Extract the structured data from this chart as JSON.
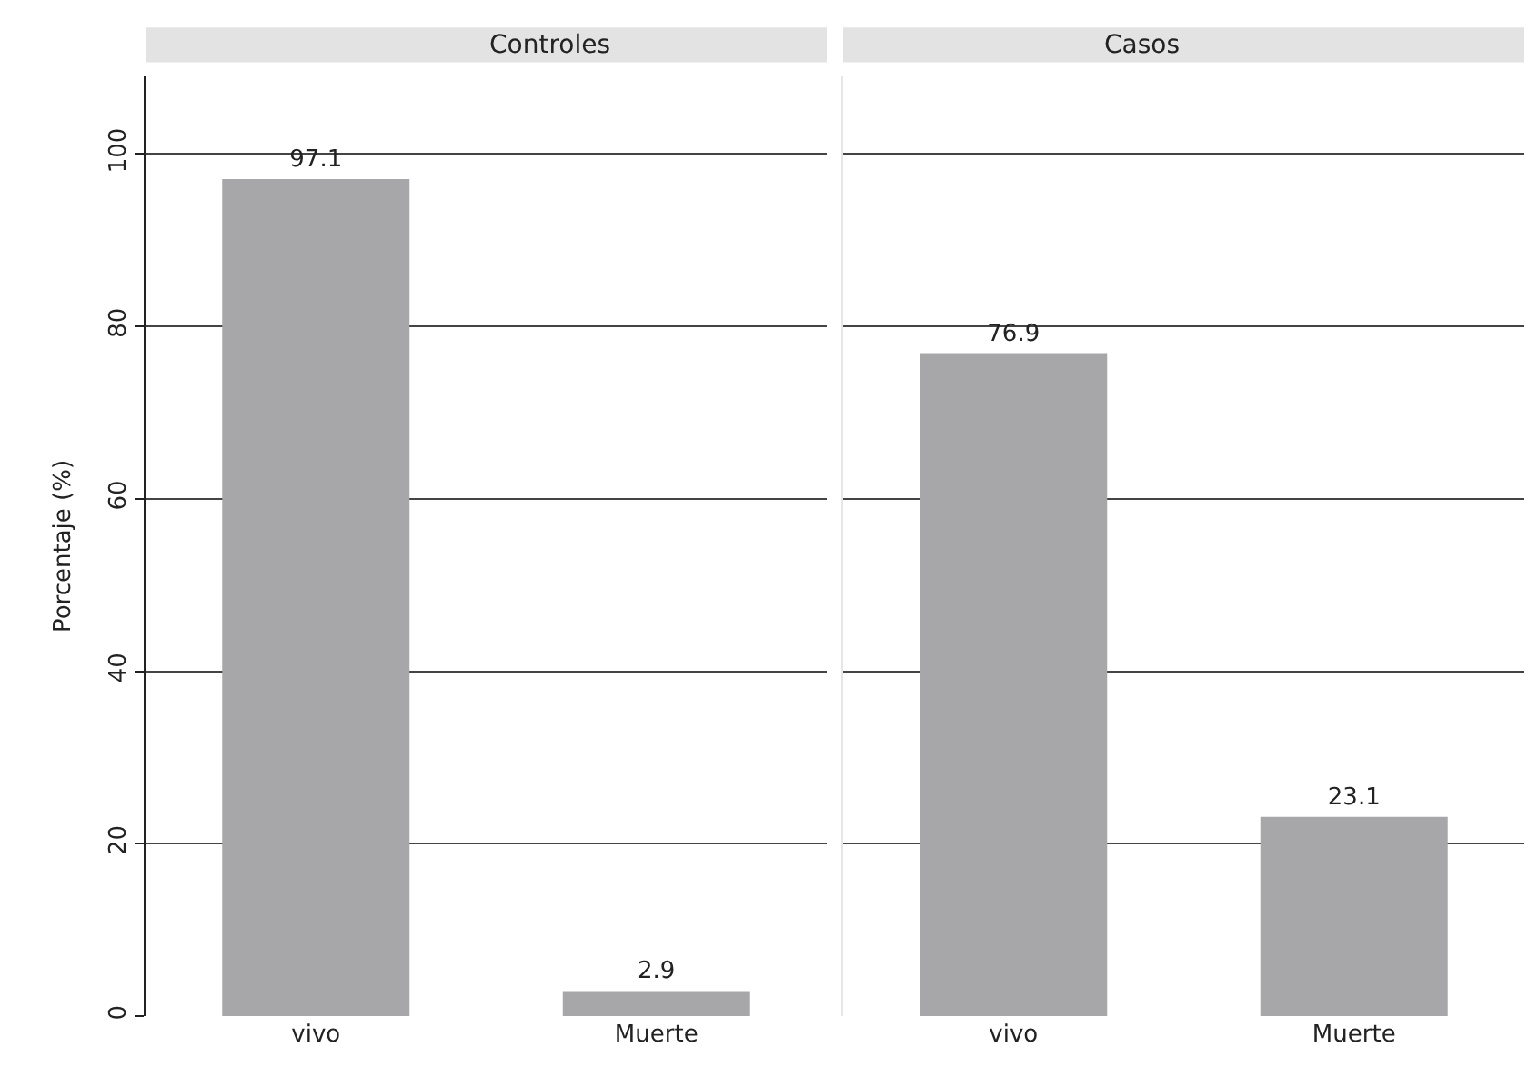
{
  "chart_data": [
    {
      "type": "bar",
      "title": "Controles",
      "ylabel": "Porcentaje (%)",
      "categories": [
        "vivo",
        "Muerte"
      ],
      "values": [
        97.1,
        2.9
      ],
      "color": "#a7a7aa",
      "ylim": [
        0,
        109
      ],
      "yticks": [
        0,
        20,
        40,
        60,
        80,
        100
      ],
      "grid": "y",
      "data_labels": true
    },
    {
      "type": "bar",
      "title": "Casos",
      "categories": [
        "vivo",
        "Muerte"
      ],
      "values": [
        76.9,
        23.1
      ],
      "color": "#a7a7aa",
      "ylim": [
        0,
        109
      ],
      "yticks": [
        0,
        20,
        40,
        60,
        80,
        100
      ],
      "grid": "y",
      "data_labels": true,
      "tick_labels": "x"
    }
  ]
}
